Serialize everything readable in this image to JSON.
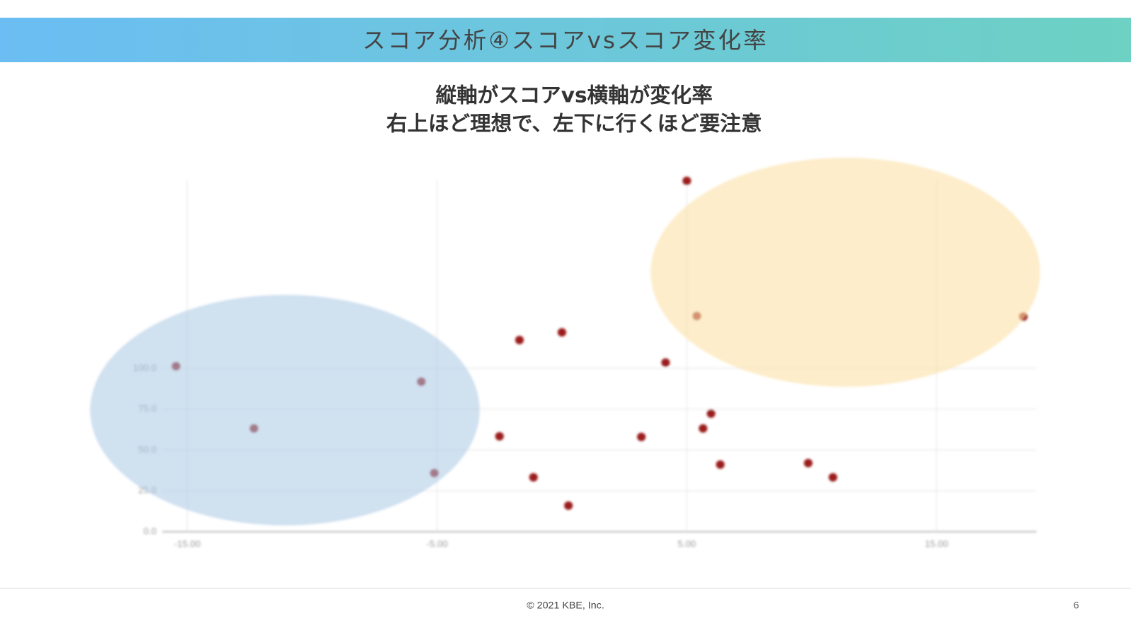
{
  "header": {
    "title": "スコア分析④スコアvsスコア変化率"
  },
  "subtitle": [
    "縦軸がスコアvs横軸が変化率",
    "右上ほど理想で、左下に行くほど要注意"
  ],
  "chart_data": {
    "type": "scatter",
    "x": [
      -15.45,
      -12.33,
      -5.63,
      -5.11,
      -2.5,
      -1.7,
      -1.14,
      0.0,
      0.26,
      3.18,
      4.15,
      5.0,
      5.4,
      5.65,
      5.97,
      6.34,
      9.86,
      10.85,
      18.47
    ],
    "values": [
      101.3,
      63.2,
      91.8,
      35.9,
      58.4,
      117.3,
      33.3,
      122,
      16,
      58,
      103.5,
      214.7,
      132,
      63.2,
      72.3,
      41.1,
      42,
      33.3,
      131.6
    ],
    "color": "#9b1c1c",
    "xlim": [
      -16,
      19
    ],
    "ylim": [
      0,
      215
    ],
    "xticks": [
      {
        "value": -15,
        "label": "-15.00"
      },
      {
        "value": -5,
        "label": "-5.00"
      },
      {
        "value": 5,
        "label": "5.00"
      },
      {
        "value": 15,
        "label": "15.00"
      }
    ],
    "yticks": [
      {
        "value": 0,
        "label": "0.0"
      },
      {
        "value": 25,
        "label": "25.0"
      },
      {
        "value": 50,
        "label": "50.0"
      },
      {
        "value": 75,
        "label": "75.0"
      },
      {
        "value": 100,
        "label": "100.0"
      }
    ],
    "grid": true
  },
  "footer": {
    "copyright": "© 2021 KBE, Inc.",
    "page": "6"
  }
}
